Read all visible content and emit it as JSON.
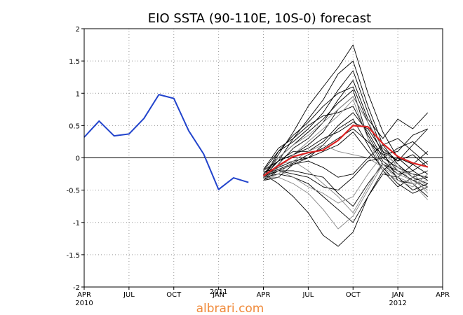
{
  "chart_data": {
    "type": "line",
    "title": "EIO SSTA (90-110E, 10S-0) forecast",
    "xlabel": "",
    "ylabel": "",
    "ylim": [
      -2,
      2
    ],
    "yticks": [
      -2,
      -1.5,
      -1,
      -0.5,
      0,
      0.5,
      1,
      1.5,
      2
    ],
    "ytick_labels": [
      "-2",
      "-1.5",
      "-1",
      "-0.5",
      "0",
      "0.5",
      "1",
      "1.5",
      "2"
    ],
    "xlim": [
      0,
      24
    ],
    "xticks": [
      {
        "x": 0,
        "label": "APR",
        "sub": "2010"
      },
      {
        "x": 3,
        "label": "JUL",
        "sub": ""
      },
      {
        "x": 6,
        "label": "OCT",
        "sub": ""
      },
      {
        "x": 9,
        "label": "JAN",
        "sub": "2011"
      },
      {
        "x": 12,
        "label": "APR",
        "sub": ""
      },
      {
        "x": 15,
        "label": "JUL",
        "sub": ""
      },
      {
        "x": 18,
        "label": "OCT",
        "sub": ""
      },
      {
        "x": 21,
        "label": "JAN",
        "sub": "2012"
      },
      {
        "x": 24,
        "label": "APR",
        "sub": ""
      }
    ],
    "grid": true,
    "zero_line": true,
    "series": [
      {
        "role": "observed",
        "color": "#2244cc",
        "x": [
          0,
          1,
          2,
          3,
          4,
          5,
          6,
          7,
          8,
          9,
          10,
          11
        ],
        "values": [
          0.32,
          0.57,
          0.34,
          0.37,
          0.61,
          0.98,
          0.92,
          0.42,
          0.06,
          -0.49,
          -0.31,
          -0.38
        ]
      },
      {
        "role": "ensemble-mean",
        "color": "#dd2222",
        "x": [
          12,
          13,
          14,
          15,
          16,
          17,
          18,
          19,
          20,
          21,
          22,
          23
        ],
        "values": [
          -0.28,
          -0.12,
          0.02,
          0.08,
          0.12,
          0.27,
          0.5,
          0.48,
          0.22,
          0.02,
          -0.08,
          -0.14
        ]
      },
      {
        "role": "member",
        "color": "#000000",
        "x": [
          12,
          13,
          14,
          15,
          16,
          17,
          18,
          19,
          20,
          21,
          22,
          23
        ],
        "values": [
          -0.3,
          0.05,
          0.4,
          0.8,
          1.1,
          1.4,
          1.75,
          1.0,
          0.4,
          0.0,
          -0.2,
          -0.35
        ]
      },
      {
        "role": "member",
        "color": "#000000",
        "x": [
          12,
          13,
          14,
          15,
          16,
          17,
          18,
          19,
          20,
          21,
          22,
          23
        ],
        "values": [
          -0.25,
          -0.05,
          0.3,
          0.6,
          0.9,
          1.3,
          1.5,
          0.8,
          0.2,
          -0.1,
          -0.3,
          -0.4
        ]
      },
      {
        "role": "member",
        "color": "#000000",
        "x": [
          12,
          13,
          14,
          15,
          16,
          17,
          18,
          19,
          20,
          21,
          22,
          23
        ],
        "values": [
          -0.2,
          0.1,
          0.25,
          0.45,
          0.7,
          1.05,
          1.35,
          0.7,
          0.1,
          -0.05,
          0.2,
          0.45
        ]
      },
      {
        "role": "member",
        "color": "#000000",
        "x": [
          12,
          13,
          14,
          15,
          16,
          17,
          18,
          19,
          20,
          21,
          22,
          23
        ],
        "values": [
          -0.35,
          -0.1,
          0.15,
          0.3,
          0.55,
          0.9,
          1.2,
          0.6,
          0.3,
          0.6,
          0.45,
          0.7
        ]
      },
      {
        "role": "member",
        "color": "#000000",
        "x": [
          12,
          13,
          14,
          15,
          16,
          17,
          18,
          19,
          20,
          21,
          22,
          23
        ],
        "values": [
          -0.3,
          -0.15,
          0.05,
          0.2,
          0.4,
          0.75,
          0.95,
          0.55,
          0.05,
          -0.2,
          -0.35,
          -0.45
        ]
      },
      {
        "role": "member",
        "color": "#000000",
        "x": [
          12,
          13,
          14,
          15,
          16,
          17,
          18,
          19,
          20,
          21,
          22,
          23
        ],
        "values": [
          -0.25,
          0.0,
          0.2,
          0.4,
          0.6,
          0.85,
          1.05,
          0.3,
          -0.1,
          -0.3,
          -0.1,
          0.1
        ]
      },
      {
        "role": "member",
        "color": "#000000",
        "x": [
          12,
          13,
          14,
          15,
          16,
          17,
          18,
          19,
          20,
          21,
          22,
          23
        ],
        "values": [
          -0.2,
          -0.05,
          0.1,
          0.1,
          0.25,
          0.5,
          0.7,
          0.4,
          0.0,
          -0.15,
          -0.25,
          -0.3
        ]
      },
      {
        "role": "member",
        "color": "#000000",
        "x": [
          12,
          13,
          14,
          15,
          16,
          17,
          18,
          19,
          20,
          21,
          22,
          23
        ],
        "values": [
          -0.35,
          -0.3,
          -0.1,
          0.0,
          0.2,
          0.45,
          0.6,
          0.2,
          -0.2,
          -0.45,
          -0.3,
          -0.2
        ]
      },
      {
        "role": "member",
        "color": "#000000",
        "x": [
          12,
          13,
          14,
          15,
          16,
          17,
          18,
          19,
          20,
          21,
          22,
          23
        ],
        "values": [
          -0.3,
          -0.25,
          -0.3,
          -0.4,
          -0.6,
          -0.8,
          -1.0,
          -0.6,
          -0.2,
          0.0,
          -0.1,
          -0.25
        ]
      },
      {
        "role": "member",
        "color": "#000000",
        "x": [
          12,
          13,
          14,
          15,
          16,
          17,
          18,
          19,
          20,
          21,
          22,
          23
        ],
        "values": [
          -0.25,
          -0.4,
          -0.6,
          -0.85,
          -1.2,
          -1.37,
          -1.15,
          -0.6,
          -0.25,
          -0.3,
          -0.5,
          -0.4
        ]
      },
      {
        "role": "member",
        "color": "#000000",
        "x": [
          12,
          13,
          14,
          15,
          16,
          17,
          18,
          19,
          20,
          21,
          22,
          23
        ],
        "values": [
          -0.28,
          -0.2,
          -0.25,
          -0.3,
          -0.45,
          -0.5,
          -0.3,
          -0.05,
          0.0,
          0.15,
          0.25,
          0.05
        ]
      },
      {
        "role": "member",
        "color": "#000000",
        "x": [
          12,
          13,
          14,
          15,
          16,
          17,
          18,
          19,
          20,
          21,
          22,
          23
        ],
        "values": [
          -0.22,
          -0.15,
          -0.05,
          0.0,
          0.1,
          0.2,
          0.4,
          0.1,
          -0.15,
          -0.4,
          -0.55,
          -0.45
        ]
      },
      {
        "role": "member",
        "color": "#000000",
        "x": [
          12,
          13,
          14,
          15,
          16,
          17,
          18,
          19,
          20,
          21,
          22,
          23
        ],
        "values": [
          -0.32,
          0.1,
          0.35,
          0.55,
          0.8,
          1.0,
          1.1,
          0.55,
          0.15,
          -0.05,
          0.05,
          -0.15
        ]
      },
      {
        "role": "member",
        "color": "#000000",
        "x": [
          12,
          13,
          14,
          15,
          16,
          17,
          18,
          19,
          20,
          21,
          22,
          23
        ],
        "values": [
          -0.18,
          0.15,
          0.3,
          0.5,
          0.65,
          0.7,
          0.8,
          0.35,
          -0.05,
          -0.25,
          -0.2,
          -0.05
        ]
      },
      {
        "role": "member",
        "color": "#000000",
        "x": [
          12,
          13,
          14,
          15,
          16,
          17,
          18,
          19,
          20,
          21,
          22,
          23
        ],
        "values": [
          -0.3,
          -0.05,
          0.05,
          0.15,
          0.3,
          0.4,
          0.55,
          0.45,
          0.1,
          -0.35,
          -0.4,
          -0.6
        ]
      },
      {
        "role": "member",
        "color": "#000000",
        "x": [
          12,
          13,
          14,
          15,
          16,
          17,
          18,
          19,
          20,
          21,
          22,
          23
        ],
        "values": [
          -0.35,
          -0.2,
          -0.1,
          -0.05,
          -0.15,
          -0.3,
          -0.25,
          0.0,
          0.2,
          0.3,
          0.1,
          -0.1
        ]
      },
      {
        "role": "member",
        "color": "#000000",
        "x": [
          12,
          13,
          14,
          15,
          16,
          17,
          18,
          19,
          20,
          21,
          22,
          23
        ],
        "values": [
          -0.26,
          -0.18,
          -0.08,
          0.05,
          0.15,
          0.3,
          0.45,
          0.25,
          0.05,
          0.1,
          0.35,
          0.45
        ]
      },
      {
        "role": "member",
        "color": "#000000",
        "x": [
          12,
          13,
          14,
          15,
          16,
          17,
          18,
          19,
          20,
          21,
          22,
          23
        ],
        "values": [
          -0.3,
          -0.2,
          -0.2,
          -0.25,
          -0.3,
          -0.55,
          -0.75,
          -0.4,
          -0.1,
          -0.2,
          -0.35,
          -0.3
        ]
      },
      {
        "role": "member",
        "color": "#888888",
        "x": [
          12,
          13,
          14,
          15,
          16,
          17,
          18,
          19,
          20,
          21,
          22,
          23
        ],
        "values": [
          -0.3,
          -0.3,
          -0.4,
          -0.55,
          -0.8,
          -1.1,
          -0.9,
          -0.5,
          -0.1,
          -0.25,
          -0.35,
          -0.5
        ]
      },
      {
        "role": "member",
        "color": "#888888",
        "x": [
          12,
          13,
          14,
          15,
          16,
          17,
          18,
          19,
          20,
          21,
          22,
          23
        ],
        "values": [
          -0.25,
          -0.2,
          -0.3,
          -0.45,
          -0.55,
          -0.7,
          -0.6,
          -0.25,
          0.05,
          -0.1,
          -0.4,
          -0.65
        ]
      },
      {
        "role": "member",
        "color": "#888888",
        "x": [
          12,
          13,
          14,
          15,
          16,
          17,
          18,
          19,
          20,
          21,
          22,
          23
        ],
        "values": [
          -0.2,
          0.0,
          0.2,
          0.35,
          0.55,
          0.75,
          0.95,
          0.55,
          0.15,
          -0.15,
          -0.3,
          -0.55
        ]
      },
      {
        "role": "member",
        "color": "#888888",
        "x": [
          12,
          13,
          14,
          15,
          16,
          17,
          18,
          19,
          20,
          21,
          22,
          23
        ],
        "values": [
          -0.35,
          -0.25,
          -0.05,
          0.1,
          0.2,
          0.1,
          0.05,
          0.0,
          -0.15,
          -0.3,
          -0.4,
          -0.35
        ]
      },
      {
        "role": "member",
        "color": "#888888",
        "x": [
          12,
          13,
          14,
          15,
          16,
          17,
          18,
          19,
          20,
          21,
          22,
          23
        ],
        "values": [
          -0.3,
          -0.1,
          -0.05,
          -0.2,
          -0.4,
          -0.6,
          -0.85,
          -0.45,
          -0.05,
          -0.2,
          -0.25,
          -0.45
        ]
      },
      {
        "role": "member",
        "color": "#888888",
        "x": [
          12,
          13,
          14,
          15,
          16,
          17,
          18,
          19,
          20,
          21,
          22,
          23
        ],
        "values": [
          -0.32,
          -0.15,
          0.05,
          0.25,
          0.45,
          0.65,
          0.9,
          0.3,
          -0.2,
          -0.35,
          -0.45,
          -0.25
        ]
      }
    ]
  },
  "watermark": "albrari.com"
}
